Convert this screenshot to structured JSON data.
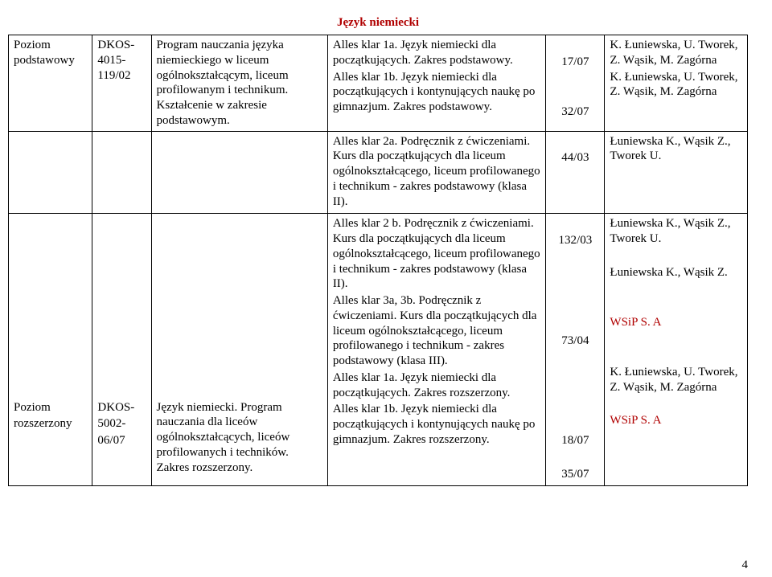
{
  "heading": {
    "text": "Język niemiecki",
    "color": "#b00000"
  },
  "page_number": "4",
  "rows": [
    {
      "c1": "Poziom podstawowy",
      "c2": "DKOS-4015-119/02",
      "c3": "Program nauczania języka niemieckiego w liceum ogólnokształcącym, liceum profilowanym   i technikum. Kształcenie w zakresie podstawowym.",
      "c4": [
        "Alles klar 1a. Język niemiecki dla początkujących. Zakres podstawowy.",
        "Alles klar 1b. Język niemiecki dla początkujących i kontynujących naukę po gimnazjum. Zakres podstawowy."
      ],
      "c5": [
        "",
        "17/07",
        "",
        "",
        "32/07"
      ],
      "c6": [
        "K. Łuniewska, U. Tworek, Z. Wąsik, M. Zagórna",
        "K. Łuniewska, U. Tworek, Z. Wąsik, M. Zagórna"
      ]
    },
    {
      "c1": "",
      "c2": "",
      "c3": "",
      "c4": [
        "Alles klar 2a. Podręcznik z ćwiczeniami. Kurs dla początkujących dla liceum ogólnokształcącego, liceum profilowanego i technikum - zakres podstawowy (klasa II)."
      ],
      "c5": [
        "",
        "44/03"
      ],
      "c6": [
        "Łuniewska K., Wąsik Z., Tworek U."
      ]
    },
    {
      "c1_lines": [
        "",
        "",
        "",
        "",
        "",
        "",
        "",
        "",
        "",
        "",
        "",
        "Poziom",
        "rozszerzony"
      ],
      "c2_lines": [
        "",
        "",
        "",
        "",
        "",
        "",
        "",
        "",
        "",
        "",
        "",
        "DKOS-",
        "5002-",
        "06/07"
      ],
      "c3_lines": [
        "",
        "",
        "",
        "",
        "",
        "",
        "",
        "",
        "",
        "",
        "",
        "Język niemiecki. Program nauczania dla liceów ogólnokształcących, liceów profilowanych  i techników. Zakres rozszerzony."
      ],
      "c4": [
        "Alles klar 2 b. Podręcznik z ćwiczeniami. Kurs dla początkujących dla liceum ogólnokształcącego, liceum profilowanego i technikum - zakres podstawowy (klasa II).",
        "Alles klar 3a, 3b. Podręcznik z ćwiczeniami. Kurs dla początkujących dla liceum ogólnokształcącego, liceum profilowanego i technikum - zakres podstawowy (klasa III).",
        "Alles klar 1a. Język niemiecki dla początkujących. Zakres rozszerzony.",
        "Alles klar 1b. Język niemiecki dla początkujących i kontynujących naukę po gimnazjum. Zakres rozszerzony."
      ],
      "c5": [
        "",
        "132/03",
        "",
        "",
        "",
        "",
        "",
        "73/04",
        "",
        "",
        "",
        "",
        "",
        "18/07",
        "",
        "35/07"
      ],
      "c6": [
        "Łuniewska K., Wąsik Z., Tworek U.",
        "",
        "Łuniewska K., Wąsik Z.",
        "",
        "",
        {
          "text": "WSiP S. A",
          "color": "#b00000"
        },
        "",
        "",
        "K. Łuniewska, U. Tworek, Z. Wąsik, M. Zagórna",
        "",
        {
          "text": "WSiP S. A",
          "color": "#b00000"
        }
      ]
    }
  ]
}
